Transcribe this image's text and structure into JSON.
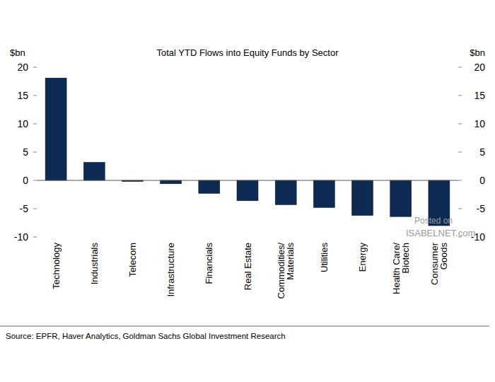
{
  "chart_data": {
    "type": "bar",
    "title": "Total YTD Flows into Equity Funds by Sector",
    "y_label": "$bn",
    "y2_label": "$bn",
    "categories": [
      "Technology",
      "Industrials",
      "Telecom",
      "Infrastructure",
      "Financials",
      "Real Estate",
      "Commodities/\nMaterials",
      "Utilities",
      "Energy",
      "Health Care/\nBiotech",
      "Consumer\nGoods"
    ],
    "values": [
      18.1,
      3.2,
      -0.2,
      -0.6,
      -2.3,
      -3.6,
      -4.3,
      -4.8,
      -6.2,
      -6.4,
      -8.0
    ],
    "color": "#0d2b52",
    "ylim": [
      -10,
      20
    ],
    "yticks": [
      -10,
      -5,
      0,
      5,
      10,
      15,
      20
    ],
    "y2lim": [
      -10,
      20
    ],
    "y2ticks": [
      -10,
      -5,
      0,
      5,
      10,
      15,
      20
    ],
    "grid": false,
    "source": "Source: EPFR, Haver Analytics, Goldman Sachs Global Investment Research",
    "annotations": [
      "Posted on",
      "ISABELNET.com"
    ]
  }
}
